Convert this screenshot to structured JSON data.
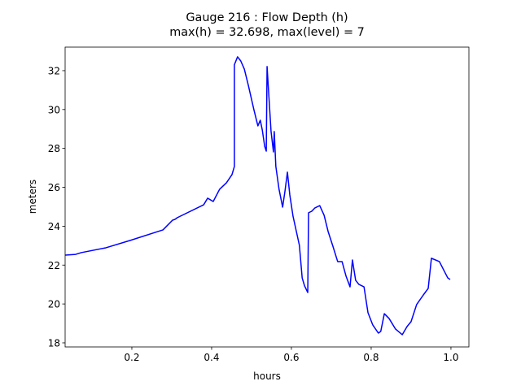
{
  "chart_data": {
    "type": "line",
    "title": "Gauge 216 : Flow Depth (h)",
    "subtitle": "max(h) =  32.698,    max(level) = 7",
    "xlabel": "hours",
    "ylabel": "meters",
    "color": "#0000ff",
    "xlim": [
      0.0327,
      1.045
    ],
    "ylim": [
      17.79,
      33.21
    ],
    "xticks": [
      0.2,
      0.4,
      0.6,
      0.8,
      {
        "value": 1,
        "label": "1.0"
      }
    ],
    "yticks": [
      18,
      20,
      22,
      24,
      26,
      28,
      30,
      32
    ],
    "x": [
      0.033,
      0.059,
      0.073,
      0.135,
      0.196,
      0.278,
      0.302,
      0.308,
      0.314,
      0.38,
      0.39,
      0.404,
      0.42,
      0.437,
      0.451,
      0.457,
      0.457,
      0.465,
      0.473,
      0.482,
      0.492,
      0.506,
      0.516,
      0.522,
      0.527,
      0.533,
      0.537,
      0.539,
      0.545,
      0.549,
      0.555,
      0.557,
      0.561,
      0.569,
      0.578,
      0.584,
      0.59,
      0.596,
      0.604,
      0.612,
      0.62,
      0.627,
      0.633,
      0.641,
      0.643,
      0.651,
      0.659,
      0.671,
      0.682,
      0.692,
      0.704,
      0.716,
      0.727,
      0.737,
      0.747,
      0.753,
      0.761,
      0.769,
      0.782,
      0.792,
      0.804,
      0.818,
      0.824,
      0.833,
      0.845,
      0.861,
      0.878,
      0.89,
      0.9,
      0.914,
      0.931,
      0.943,
      0.951,
      0.971,
      0.992,
      0.998
    ],
    "values": [
      22.51,
      22.55,
      22.64,
      22.89,
      23.27,
      23.81,
      24.31,
      24.35,
      24.44,
      25.1,
      25.44,
      25.27,
      25.9,
      26.23,
      26.65,
      27.07,
      32.3,
      32.71,
      32.5,
      32.08,
      31.25,
      29.99,
      29.16,
      29.45,
      28.95,
      28.11,
      27.86,
      32.21,
      30.2,
      28.87,
      27.82,
      28.87,
      27.07,
      25.9,
      24.98,
      25.82,
      26.78,
      25.61,
      24.52,
      23.77,
      23.02,
      21.34,
      20.93,
      20.59,
      24.69,
      24.77,
      24.94,
      25.06,
      24.56,
      23.73,
      22.97,
      22.18,
      22.18,
      21.43,
      20.88,
      22.26,
      21.22,
      21.01,
      20.88,
      19.55,
      18.92,
      18.5,
      18.59,
      19.5,
      19.25,
      18.71,
      18.42,
      18.84,
      19.09,
      19.97,
      20.47,
      20.8,
      22.35,
      22.18,
      21.34,
      21.26
    ]
  }
}
